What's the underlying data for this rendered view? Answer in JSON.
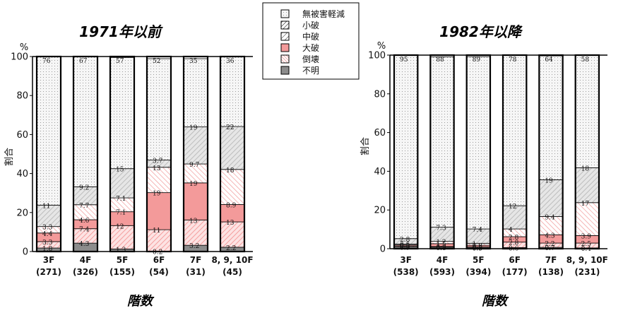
{
  "legend": {
    "items": [
      {
        "key": "none",
        "label": "無被害軽減"
      },
      {
        "key": "minor",
        "label": "小破"
      },
      {
        "key": "medium",
        "label": "中破"
      },
      {
        "key": "major",
        "label": "大破"
      },
      {
        "key": "collapse",
        "label": "倒壊"
      },
      {
        "key": "unknown",
        "label": "不明"
      }
    ]
  },
  "colors": {
    "none": "#f4f4f4",
    "minor": "#ffffff",
    "medium": "#ffffff",
    "major": "#f39a9a",
    "collapse": "#ffd0d0",
    "unknown": "#8c8c8c",
    "upper_gray": "#e0e0e0"
  },
  "chart_data": [
    {
      "type": "bar",
      "title": "1971年以前",
      "xlabel": "階数",
      "ylabel": "割合",
      "yunit": "%",
      "ylim": [
        0,
        100
      ],
      "yticks": [
        0,
        20,
        40,
        60,
        80,
        100
      ],
      "categories": [
        "3F",
        "4F",
        "5F",
        "6F",
        "7F",
        "8, 9, 10F"
      ],
      "counts": [
        "(271)",
        "(326)",
        "(155)",
        "(54)",
        "(31)",
        "(45)"
      ],
      "series": [
        {
          "key": "unknown",
          "name": "不明",
          "values": [
            1.8,
            4.3,
            1.3,
            0.2,
            3.2,
            2.2
          ]
        },
        {
          "key": "collapse",
          "name": "倒壊",
          "values": [
            3.3,
            7.4,
            12,
            11,
            13,
            13
          ]
        },
        {
          "key": "major",
          "name": "大破",
          "values": [
            4.4,
            4.6,
            7.1,
            19,
            19,
            8.9
          ]
        },
        {
          "key": "medium",
          "name": "中破",
          "values": [
            3.3,
            7.7,
            7.1,
            13,
            9.7,
            18
          ]
        },
        {
          "key": "minor",
          "name": "小破",
          "values": [
            11,
            9.2,
            15,
            3.7,
            19,
            22
          ]
        },
        {
          "key": "none",
          "name": "無被害軽減",
          "values": [
            76,
            67,
            57,
            52,
            35,
            36
          ]
        }
      ]
    },
    {
      "type": "bar",
      "title": "1982年以降",
      "xlabel": "階数",
      "ylabel": "割合",
      "yunit": "%",
      "ylim": [
        0,
        100
      ],
      "yticks": [
        0,
        20,
        40,
        60,
        80,
        100
      ],
      "categories": [
        "3F",
        "4F",
        "5F",
        "6F",
        "7F",
        "8, 9, 10F"
      ],
      "counts": [
        "(538)",
        "(593)",
        "(394)",
        "(177)",
        "(138)",
        "(231)"
      ],
      "series": [
        {
          "key": "unknown",
          "name": "不明",
          "values": [
            0.9,
            0.8,
            0.5,
            0.6,
            0.7,
            0.4
          ]
        },
        {
          "key": "collapse",
          "name": "倒壊",
          "values": [
            0.5,
            0.3,
            0.5,
            2.8,
            2.2,
            2.5
          ]
        },
        {
          "key": "major",
          "name": "大破",
          "values": [
            0.5,
            1.5,
            0.8,
            2.8,
            4.3,
            3.9
          ]
        },
        {
          "key": "medium",
          "name": "中破",
          "values": [
            0.5,
            1.2,
            1.0,
            4,
            9.4,
            17
          ]
        },
        {
          "key": "minor",
          "name": "小破",
          "values": [
            2.8,
            7.3,
            7.4,
            12,
            19,
            18
          ]
        },
        {
          "key": "none",
          "name": "無被害軽減",
          "values": [
            95,
            88,
            89,
            78,
            64,
            58
          ]
        }
      ]
    }
  ]
}
